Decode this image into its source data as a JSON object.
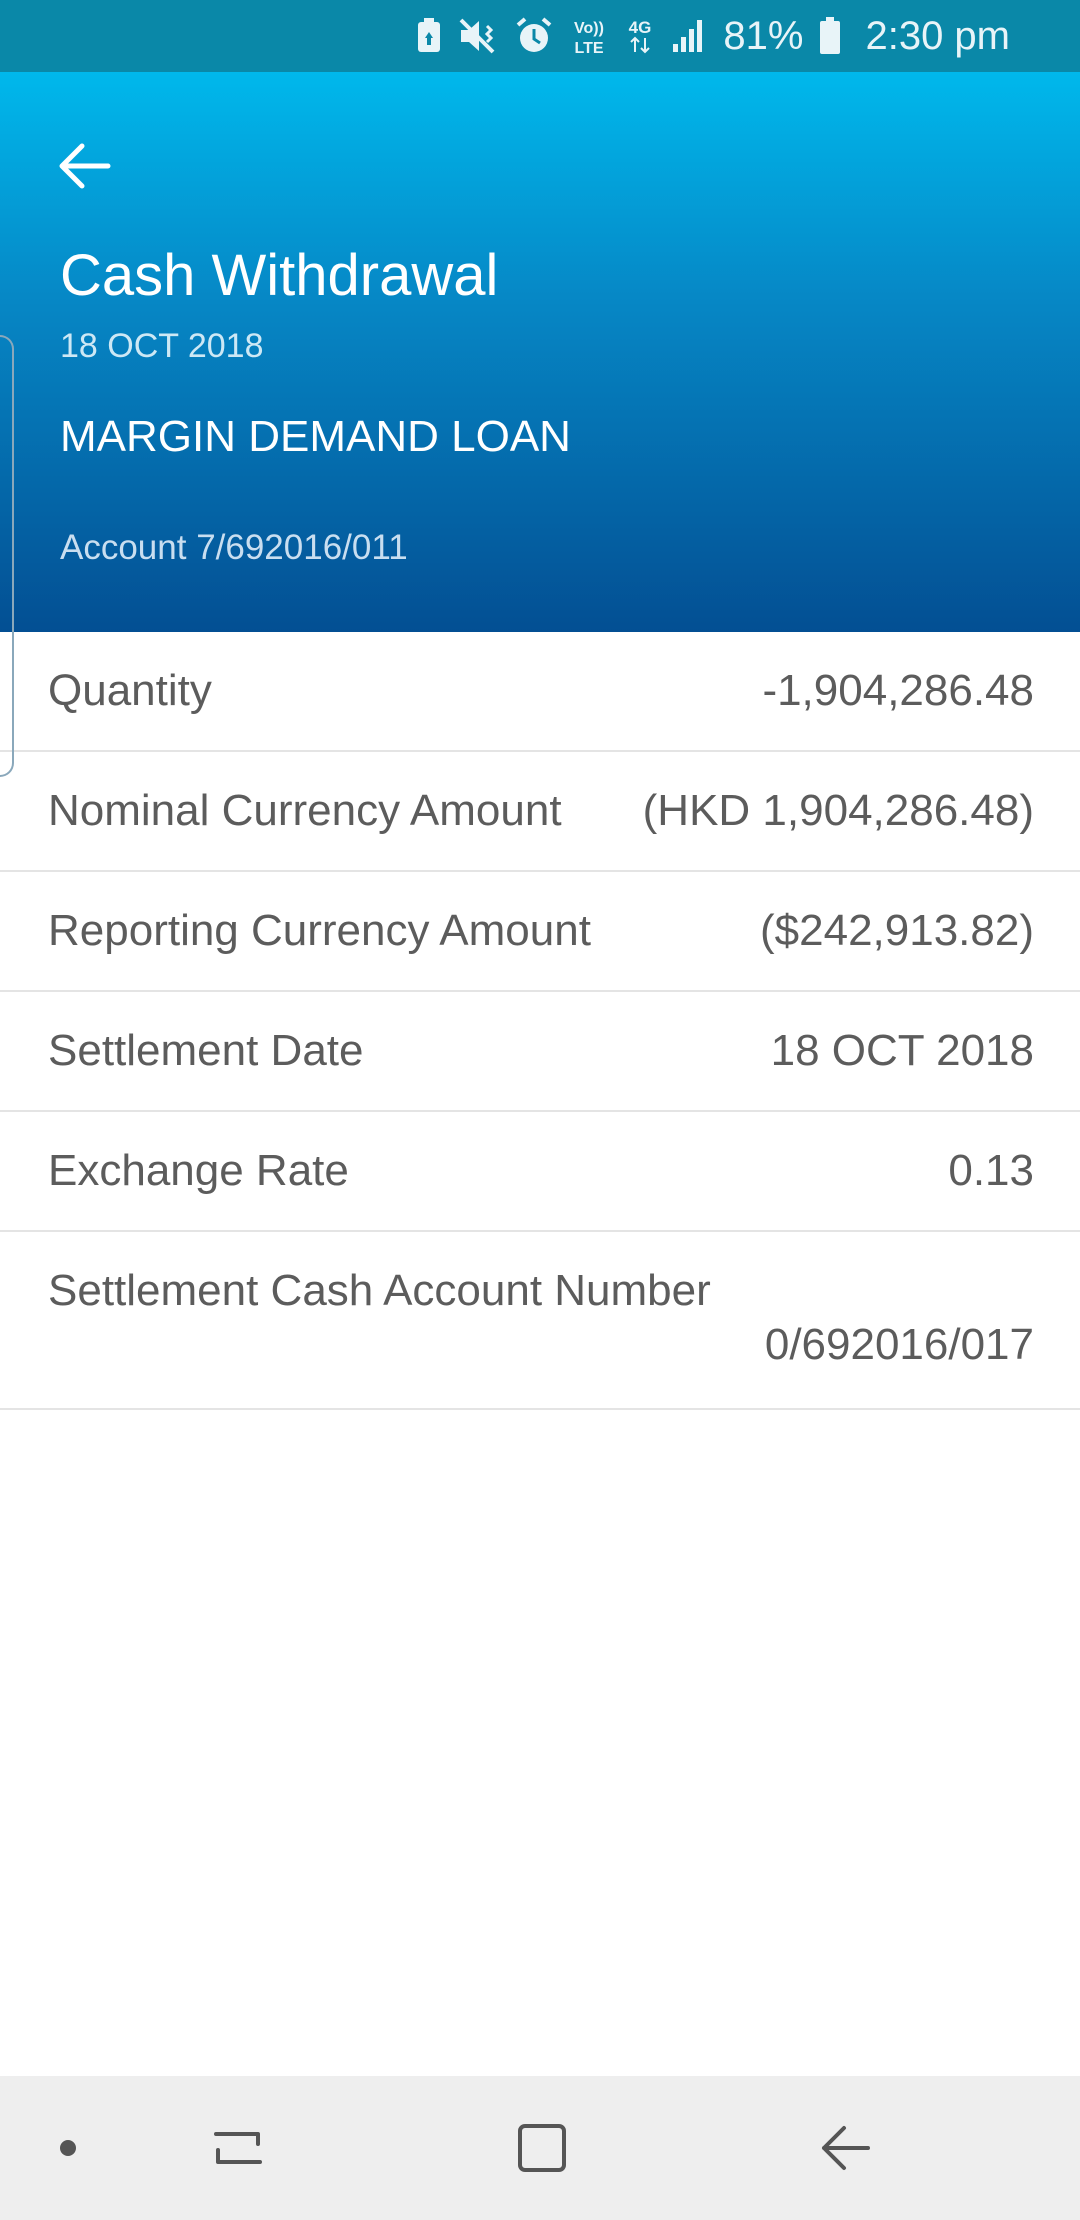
{
  "status_bar": {
    "battery_percent": "81%",
    "time": "2:30 pm",
    "network_label": "4G",
    "volte_label": "Vo))",
    "lte_label": "LTE",
    "icons": [
      "battery-saver-icon",
      "mute-vibrate-icon",
      "alarm-icon",
      "volte-icon",
      "4g-data-icon",
      "signal-icon",
      "battery-icon"
    ]
  },
  "header": {
    "title": "Cash Withdrawal",
    "date": "18 OCT 2018",
    "account_type": "MARGIN DEMAND LOAN",
    "account_number": "Account 7/692016/011",
    "background_top": "#00b8ec",
    "background_bottom": "#034f93"
  },
  "details": [
    {
      "label": "Quantity",
      "value": "-1,904,286.48"
    },
    {
      "label": "Nominal Currency Amount",
      "value": "(HKD 1,904,286.48)"
    },
    {
      "label": "Reporting Currency Amount",
      "value": "($242,913.82)"
    },
    {
      "label": "Settlement Date",
      "value": "18 OCT 2018"
    },
    {
      "label": "Exchange Rate",
      "value": "0.13"
    },
    {
      "label": "Settlement Cash Account Number",
      "value": "0/692016/017"
    }
  ],
  "nav_bar": {
    "buttons": [
      "dot-icon",
      "recent-apps-icon",
      "home-icon",
      "back-icon"
    ]
  }
}
